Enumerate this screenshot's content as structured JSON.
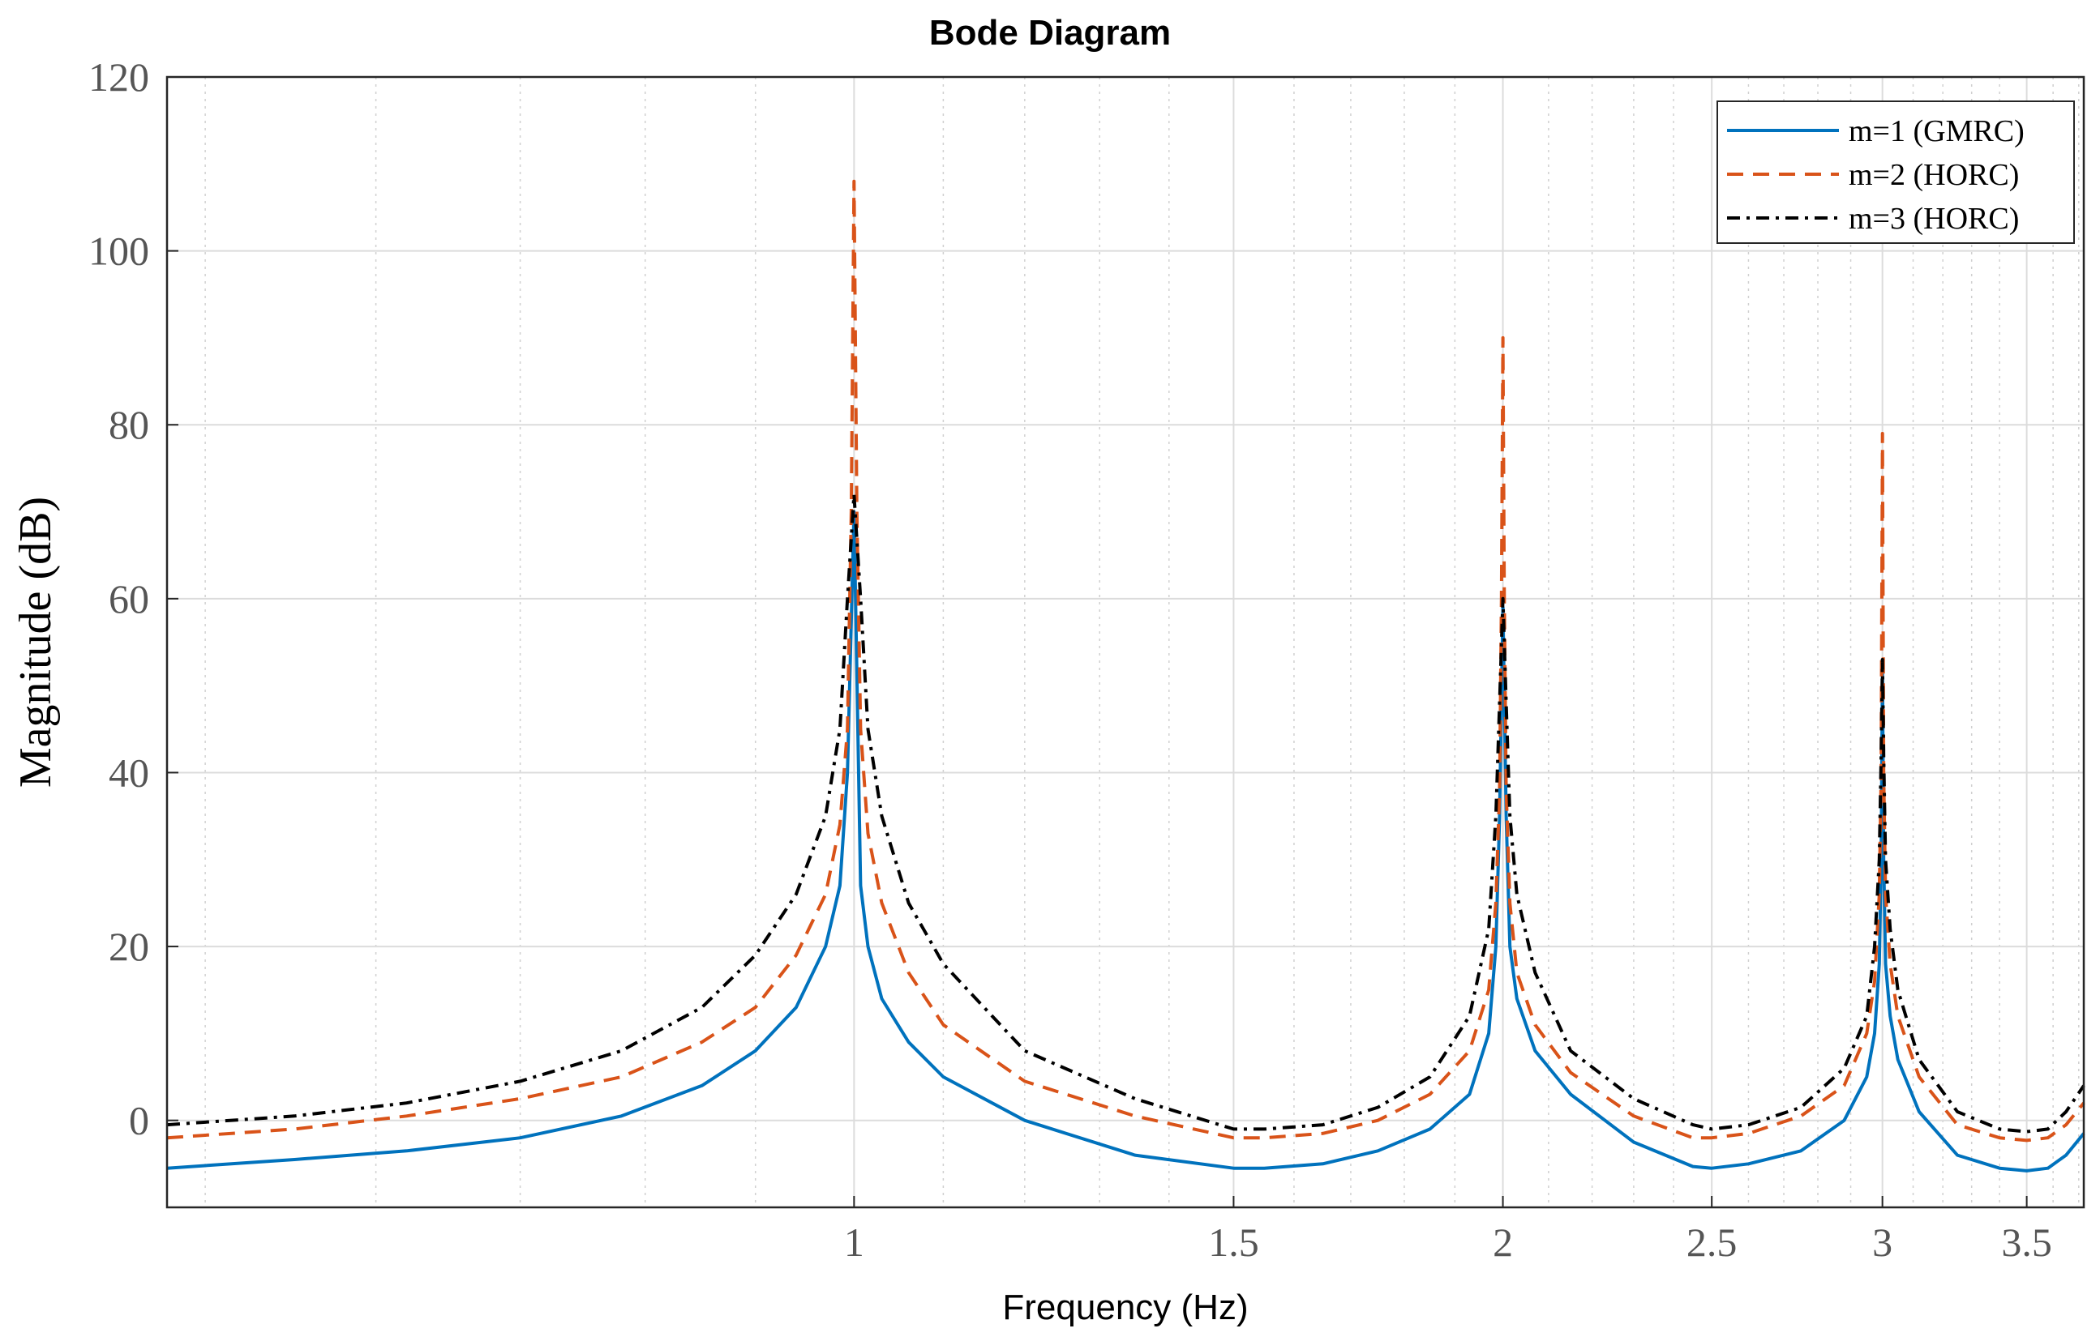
{
  "chart_data": {
    "type": "line",
    "title": "Bode Diagram",
    "xlabel": "Frequency  (Hz)",
    "ylabel": "Magnitude (dB)",
    "xscale": "log",
    "xlim": [
      0.48,
      3.72
    ],
    "ylim": [
      -10,
      120
    ],
    "xticks": [
      1,
      1.5,
      2,
      2.5,
      3,
      3.5
    ],
    "xtick_labels": [
      "1",
      "1.5",
      "2",
      "2.5",
      "3",
      "3.5"
    ],
    "yticks": [
      0,
      20,
      40,
      60,
      80,
      100,
      120
    ],
    "ytick_labels": [
      "0",
      "20",
      "40",
      "60",
      "80",
      "100",
      "120"
    ],
    "grid": true,
    "legend_position": "top-right",
    "series": [
      {
        "name": "m=1 (GMRC)",
        "color": "#0072BD",
        "style": "solid",
        "x": [
          0.48,
          0.55,
          0.62,
          0.7,
          0.78,
          0.85,
          0.9,
          0.94,
          0.97,
          0.985,
          0.993,
          1.0,
          1.007,
          1.015,
          1.03,
          1.06,
          1.1,
          1.2,
          1.35,
          1.5,
          1.55,
          1.65,
          1.75,
          1.85,
          1.93,
          1.97,
          1.985,
          1.993,
          2.0,
          2.007,
          2.015,
          2.03,
          2.07,
          2.15,
          2.3,
          2.45,
          2.5,
          2.6,
          2.75,
          2.88,
          2.95,
          2.975,
          2.99,
          2.996,
          3.0,
          3.004,
          3.01,
          3.025,
          3.05,
          3.12,
          3.25,
          3.4,
          3.5,
          3.58,
          3.65,
          3.72
        ],
        "y": [
          -5.5,
          -4.5,
          -3.5,
          -2,
          0.5,
          4,
          8,
          13,
          20,
          27,
          40,
          70,
          27,
          20,
          14,
          9,
          5,
          0,
          -4,
          -5.5,
          -5.5,
          -5,
          -3.5,
          -1,
          3,
          10,
          20,
          35,
          59,
          35,
          20,
          14,
          8,
          3,
          -2.5,
          -5.3,
          -5.5,
          -5,
          -3.5,
          0,
          5,
          10,
          18,
          30,
          52,
          30,
          18,
          12,
          7,
          1,
          -4,
          -5.5,
          -5.8,
          -5.5,
          -4,
          -1.5
        ]
      },
      {
        "name": "m=2 (HORC)",
        "color": "#D95319",
        "style": "dashed",
        "x": [
          0.48,
          0.55,
          0.62,
          0.7,
          0.78,
          0.85,
          0.9,
          0.94,
          0.97,
          0.985,
          0.993,
          0.997,
          1.0,
          1.003,
          1.007,
          1.015,
          1.03,
          1.06,
          1.1,
          1.2,
          1.35,
          1.5,
          1.55,
          1.65,
          1.75,
          1.85,
          1.93,
          1.97,
          1.985,
          1.993,
          1.997,
          2.0,
          2.003,
          2.007,
          2.015,
          2.03,
          2.07,
          2.15,
          2.3,
          2.45,
          2.5,
          2.6,
          2.75,
          2.88,
          2.95,
          2.975,
          2.99,
          2.996,
          3.0,
          3.004,
          3.01,
          3.025,
          3.05,
          3.12,
          3.25,
          3.4,
          3.5,
          3.58,
          3.65,
          3.72
        ],
        "y": [
          -2,
          -1,
          0.5,
          2.5,
          5,
          9,
          13,
          19,
          26,
          34,
          45,
          70,
          108,
          70,
          45,
          33,
          25,
          17,
          11,
          4.5,
          0.5,
          -2,
          -2,
          -1.5,
          0,
          3,
          8,
          15,
          25,
          38,
          60,
          90,
          60,
          38,
          25,
          17,
          11,
          5.5,
          0.5,
          -2,
          -2,
          -1.5,
          0.5,
          4,
          10,
          16,
          26,
          40,
          79,
          40,
          26,
          18,
          12,
          5,
          -0.5,
          -2,
          -2.3,
          -2,
          -0.5,
          2
        ]
      },
      {
        "name": "m=3 (HORC)",
        "color": "#000000",
        "style": "dashdot",
        "x": [
          0.48,
          0.55,
          0.62,
          0.7,
          0.78,
          0.85,
          0.9,
          0.94,
          0.97,
          0.985,
          0.993,
          1.0,
          1.007,
          1.015,
          1.03,
          1.06,
          1.1,
          1.2,
          1.35,
          1.5,
          1.55,
          1.65,
          1.75,
          1.85,
          1.93,
          1.97,
          1.985,
          1.993,
          2.0,
          2.007,
          2.015,
          2.03,
          2.07,
          2.15,
          2.3,
          2.45,
          2.5,
          2.6,
          2.75,
          2.88,
          2.95,
          2.975,
          2.99,
          2.996,
          3.0,
          3.004,
          3.01,
          3.025,
          3.05,
          3.12,
          3.25,
          3.4,
          3.5,
          3.58,
          3.65,
          3.72
        ],
        "y": [
          -0.5,
          0.5,
          2,
          4.5,
          8,
          13,
          19,
          26,
          35,
          45,
          60,
          72,
          60,
          45,
          35,
          25,
          18,
          8,
          2.5,
          -1,
          -1,
          -0.5,
          1.5,
          5,
          12,
          22,
          35,
          48,
          60,
          48,
          35,
          26,
          17,
          8,
          2.5,
          -0.5,
          -1,
          -0.5,
          1.5,
          6,
          12,
          20,
          30,
          42,
          53,
          42,
          30,
          22,
          15,
          7,
          1,
          -1,
          -1.3,
          -1,
          1,
          4
        ]
      }
    ]
  }
}
